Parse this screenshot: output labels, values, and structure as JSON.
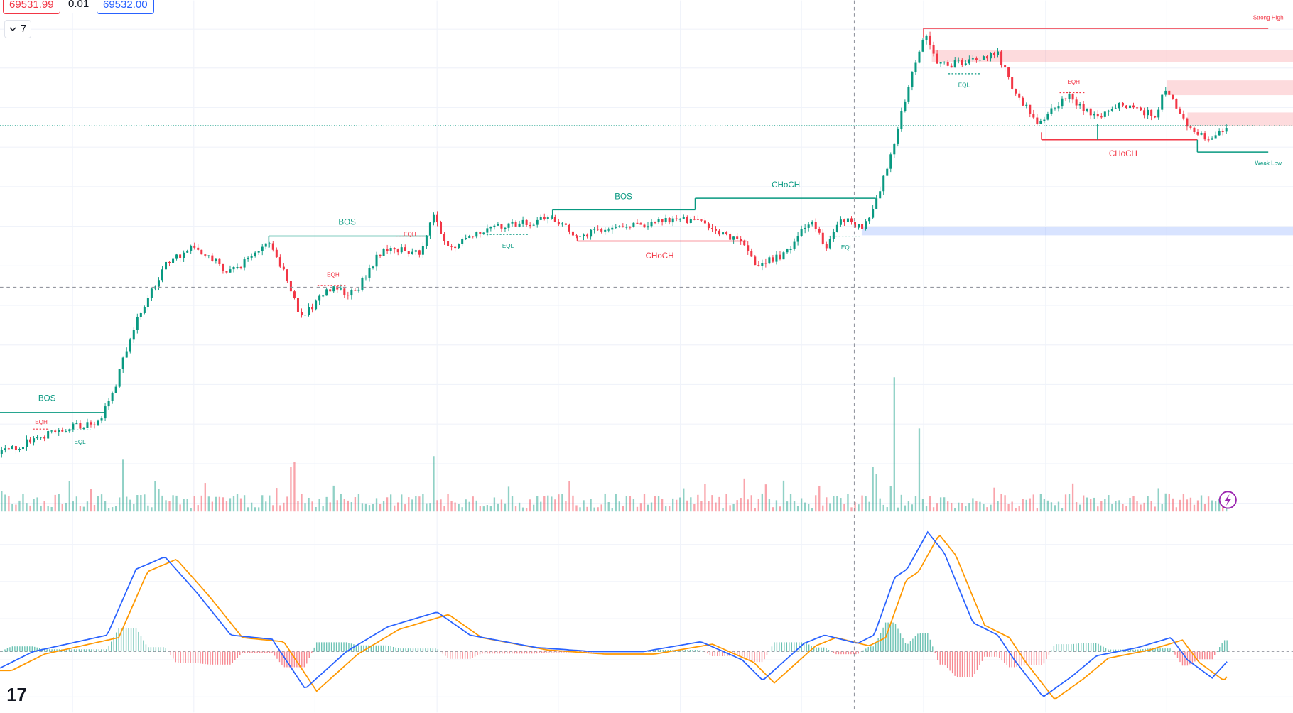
{
  "toolbar": {
    "bid": "69531.99",
    "spread": "0.01",
    "ask": "69532.00",
    "interval": "7"
  },
  "annotations": [
    {
      "label": "BOS"
    },
    {
      "label": "EQH"
    },
    {
      "label": "EQL"
    },
    {
      "label": "BOS"
    },
    {
      "label": "EQH"
    },
    {
      "label": "EQH"
    },
    {
      "label": "EQL"
    },
    {
      "label": "BOS"
    },
    {
      "label": "CHoCH"
    },
    {
      "label": "CHoCH"
    },
    {
      "label": "EQL"
    },
    {
      "label": "EQL"
    },
    {
      "label": "EQH"
    },
    {
      "label": "CHoCH"
    },
    {
      "label": "Strong High"
    },
    {
      "label": "Weak Low"
    }
  ],
  "logo": "17"
}
